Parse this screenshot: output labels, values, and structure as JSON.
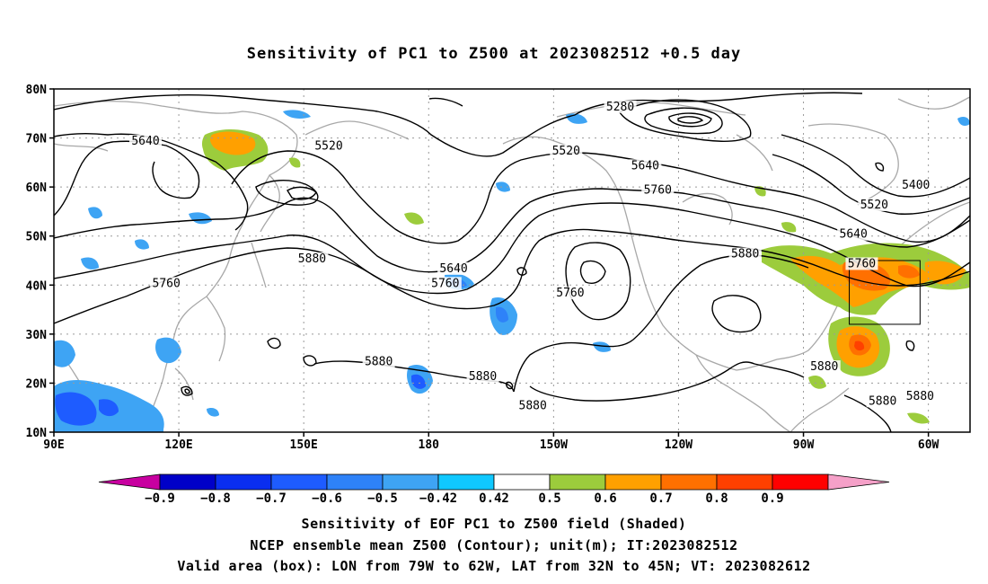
{
  "title": "Sensitivity of PC1 to Z500 at 2023082512 +0.5 day",
  "map": {
    "lon_range": [
      90,
      310
    ],
    "lat_range": [
      10,
      80
    ],
    "lat_ticks": [
      {
        "value": 80,
        "label": "80N"
      },
      {
        "value": 70,
        "label": "70N"
      },
      {
        "value": 60,
        "label": "60N"
      },
      {
        "value": 50,
        "label": "50N"
      },
      {
        "value": 40,
        "label": "40N"
      },
      {
        "value": 30,
        "label": "30N"
      },
      {
        "value": 20,
        "label": "20N"
      },
      {
        "value": 10,
        "label": "10N"
      }
    ],
    "lon_ticks": [
      {
        "value": 90,
        "label": "90E"
      },
      {
        "value": 120,
        "label": "120E"
      },
      {
        "value": 150,
        "label": "150E"
      },
      {
        "value": 180,
        "label": "180"
      },
      {
        "value": 210,
        "label": "150W"
      },
      {
        "value": 240,
        "label": "120W"
      },
      {
        "value": 270,
        "label": "90W"
      },
      {
        "value": 300,
        "label": "60W"
      }
    ],
    "box": {
      "lon_west": 281,
      "lon_east": 298,
      "lat_south": 32,
      "lat_north": 45
    },
    "contour_labels": [
      {
        "text": "5280",
        "lon": 226,
        "lat": 76
      },
      {
        "text": "5640",
        "lon": 112,
        "lat": 69
      },
      {
        "text": "5520",
        "lon": 156,
        "lat": 68
      },
      {
        "text": "5520",
        "lon": 213,
        "lat": 67
      },
      {
        "text": "5640",
        "lon": 232,
        "lat": 64
      },
      {
        "text": "5760",
        "lon": 235,
        "lat": 59
      },
      {
        "text": "5400",
        "lon": 297,
        "lat": 60
      },
      {
        "text": "5520",
        "lon": 287,
        "lat": 56
      },
      {
        "text": "5640",
        "lon": 282,
        "lat": 50
      },
      {
        "text": "5760",
        "lon": 284,
        "lat": 44
      },
      {
        "text": "5880",
        "lon": 256,
        "lat": 46
      },
      {
        "text": "5880",
        "lon": 152,
        "lat": 45
      },
      {
        "text": "5760",
        "lon": 117,
        "lat": 40
      },
      {
        "text": "5640",
        "lon": 186,
        "lat": 43
      },
      {
        "text": "5760",
        "lon": 184,
        "lat": 40
      },
      {
        "text": "5760",
        "lon": 214,
        "lat": 38
      },
      {
        "text": "5880",
        "lon": 168,
        "lat": 24
      },
      {
        "text": "5880",
        "lon": 193,
        "lat": 21
      },
      {
        "text": "5880",
        "lon": 205,
        "lat": 15
      },
      {
        "text": "5880",
        "lon": 275,
        "lat": 23
      },
      {
        "text": "5880",
        "lon": 289,
        "lat": 16
      },
      {
        "text": "5880",
        "lon": 298,
        "lat": 17
      }
    ]
  },
  "colorbar": {
    "colors": [
      "#c800a0",
      "#0000c8",
      "#0a2ef0",
      "#1e5cff",
      "#2e82f8",
      "#3ea4f4",
      "#10c8ff",
      "#ffffff",
      "#9ccc3c",
      "#ffa000",
      "#ff7000",
      "#ff4000",
      "#ff0000",
      "#f5a0c8"
    ],
    "labels": [
      "-0.9",
      "-0.8",
      "-0.7",
      "-0.6",
      "-0.5",
      "-0.42",
      "0.42",
      "0.5",
      "0.6",
      "0.7",
      "0.8",
      "0.9"
    ]
  },
  "captions": [
    "Sensitivity of EOF PC1 to Z500 field (Shaded)",
    "NCEP ensemble mean Z500 (Contour); unit(m); IT:2023082512",
    "Valid area (box): LON from 79W to 62W, LAT from 32N to 45N; VT: 2023082612"
  ]
}
